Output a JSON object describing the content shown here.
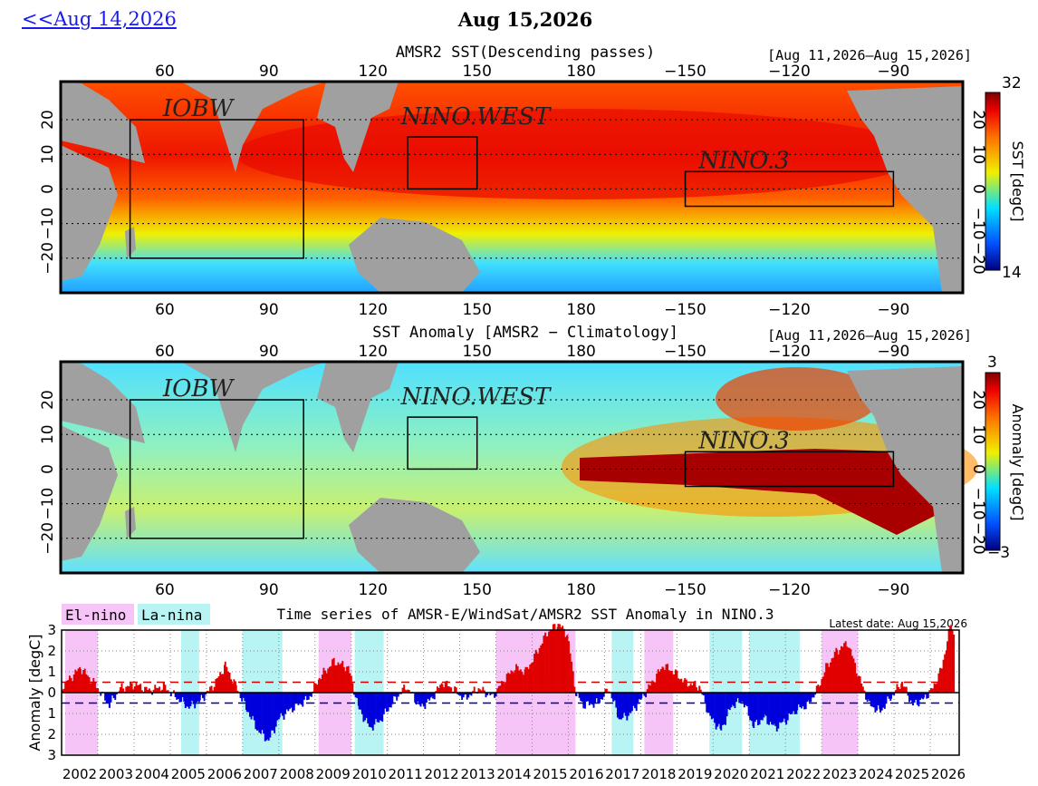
{
  "nav": {
    "prev_label": "<<Aug 14,2026",
    "current_date": "Aug 15,2026"
  },
  "colors": {
    "land": "#a0a0a0",
    "el_nino_band": "#f6c4f6",
    "la_nina_band": "#b8f4f4",
    "positive_fill": "#e00000",
    "negative_fill": "#0000dd",
    "upper_threshold": "#d00000",
    "lower_threshold": "#0000aa"
  },
  "map_lon_ticks": [
    "60",
    "90",
    "120",
    "150",
    "180",
    "−150",
    "−120",
    "−90"
  ],
  "map_lat_ticks": [
    "20",
    "10",
    "0",
    "−10",
    "−20"
  ],
  "sst_map": {
    "title": "AMSR2 SST(Descending passes)",
    "date_range": "[Aug 11,2026–Aug 15,2026]",
    "colorbar_max": "32",
    "colorbar_min": "14",
    "colorbar_title": "SST [degC]",
    "colorscale": "blue-cyan-yellow-red"
  },
  "anomaly_map": {
    "title": "SST Anomaly [AMSR2 − Climatology]",
    "date_range": "[Aug 11,2026–Aug 15,2026]",
    "colorbar_max": "3",
    "colorbar_min": "−3",
    "colorbar_title": "Anomaly [degC]",
    "colorscale": "blue-cyan-yellow-red"
  },
  "regions": [
    {
      "name": "IOBW",
      "lon": [
        50,
        100
      ],
      "lat": [
        -20,
        20
      ]
    },
    {
      "name": "NINO.WEST",
      "lon": [
        130,
        150
      ],
      "lat": [
        0,
        15
      ]
    },
    {
      "name": "NINO.3",
      "lon": [
        210,
        270
      ],
      "lat": [
        -5,
        5
      ]
    }
  ],
  "timeseries": {
    "title": "Time series of AMSR-E/WindSat/AMSR2 SST Anomaly in NINO.3",
    "legend_el_nino": "El-nino",
    "legend_la_nina": "La-nina",
    "latest_date": "Latest date: Aug 15,2026",
    "ylabel": "Anomaly [degC]",
    "y_tick_labels": [
      "3",
      "2",
      "1",
      "0",
      "1",
      "2",
      "3"
    ],
    "x_tick_labels": [
      "2002",
      "2003",
      "2004",
      "2005",
      "2006",
      "2007",
      "2008",
      "2009",
      "2010",
      "2011",
      "2012",
      "2013",
      "2014",
      "2015",
      "2016",
      "2017",
      "2018",
      "2019",
      "2020",
      "2021",
      "2022",
      "2023",
      "2024",
      "2025",
      "2026"
    ]
  },
  "chart_data": {
    "type": "area",
    "title": "Time series of AMSR-E/WindSat/AMSR2 SST Anomaly in NINO.3",
    "xlabel": "",
    "ylabel": "Anomaly [degC]",
    "xlim": [
      2002.0,
      2026.8
    ],
    "ylim": [
      -3,
      3
    ],
    "thresholds": [
      0.5,
      -0.5
    ],
    "el_nino_periods": [
      [
        2002.1,
        2003.0
      ],
      [
        2009.1,
        2010.0
      ],
      [
        2014.0,
        2016.2
      ],
      [
        2018.1,
        2018.9
      ],
      [
        2023.0,
        2024.0
      ]
    ],
    "la_nina_periods": [
      [
        2005.3,
        2005.8
      ],
      [
        2007.0,
        2008.1
      ],
      [
        2010.1,
        2010.9
      ],
      [
        2017.2,
        2017.8
      ],
      [
        2019.9,
        2020.8
      ],
      [
        2021.0,
        2022.4
      ]
    ],
    "x": [
      2002.0,
      2002.5,
      2002.9,
      2003.3,
      2003.6,
      2004.0,
      2004.4,
      2004.8,
      2005.2,
      2005.5,
      2005.8,
      2006.2,
      2006.5,
      2006.8,
      2007.1,
      2007.4,
      2007.7,
      2008.0,
      2008.4,
      2008.8,
      2009.1,
      2009.5,
      2009.9,
      2010.2,
      2010.5,
      2010.8,
      2011.2,
      2011.5,
      2011.9,
      2012.2,
      2012.5,
      2012.8,
      2013.1,
      2013.5,
      2013.9,
      2014.2,
      2014.5,
      2014.8,
      2015.1,
      2015.4,
      2015.7,
      2015.95,
      2016.2,
      2016.4,
      2016.8,
      2017.1,
      2017.4,
      2017.7,
      2018.0,
      2018.3,
      2018.6,
      2018.9,
      2019.2,
      2019.6,
      2019.9,
      2020.2,
      2020.5,
      2020.8,
      2021.1,
      2021.4,
      2021.7,
      2022.0,
      2022.3,
      2022.6,
      2022.9,
      2023.1,
      2023.4,
      2023.7,
      2024.0,
      2024.3,
      2024.6,
      2024.9,
      2025.2,
      2025.5,
      2025.8,
      2026.05,
      2026.3,
      2026.45,
      2026.55,
      2026.63
    ],
    "y": [
      0.3,
      1.2,
      0.4,
      -0.6,
      0.2,
      0.4,
      0.1,
      0.3,
      -0.3,
      -0.7,
      -0.4,
      0.4,
      1.3,
      0.3,
      -0.8,
      -1.8,
      -2.3,
      -1.2,
      -0.7,
      -0.3,
      0.7,
      1.5,
      1.2,
      -0.8,
      -1.7,
      -1.3,
      -0.3,
      0.3,
      -0.7,
      -0.3,
      0.5,
      0.2,
      -0.3,
      0.2,
      -0.2,
      0.6,
      1.2,
      1.0,
      1.9,
      2.9,
      3.3,
      2.8,
      -0.1,
      -0.6,
      -0.5,
      0.2,
      -1.3,
      -1.0,
      -0.3,
      0.5,
      1.3,
      1.0,
      0.5,
      0.3,
      -1.2,
      -1.8,
      -0.6,
      -0.4,
      -1.6,
      -1.2,
      -1.7,
      -1.3,
      -0.8,
      -0.6,
      0.3,
      1.2,
      2.0,
      2.4,
      0.8,
      -0.6,
      -0.9,
      -0.2,
      0.5,
      -0.6,
      -0.3,
      0.2,
      1.2,
      2.5,
      3.3,
      2.8
    ]
  }
}
